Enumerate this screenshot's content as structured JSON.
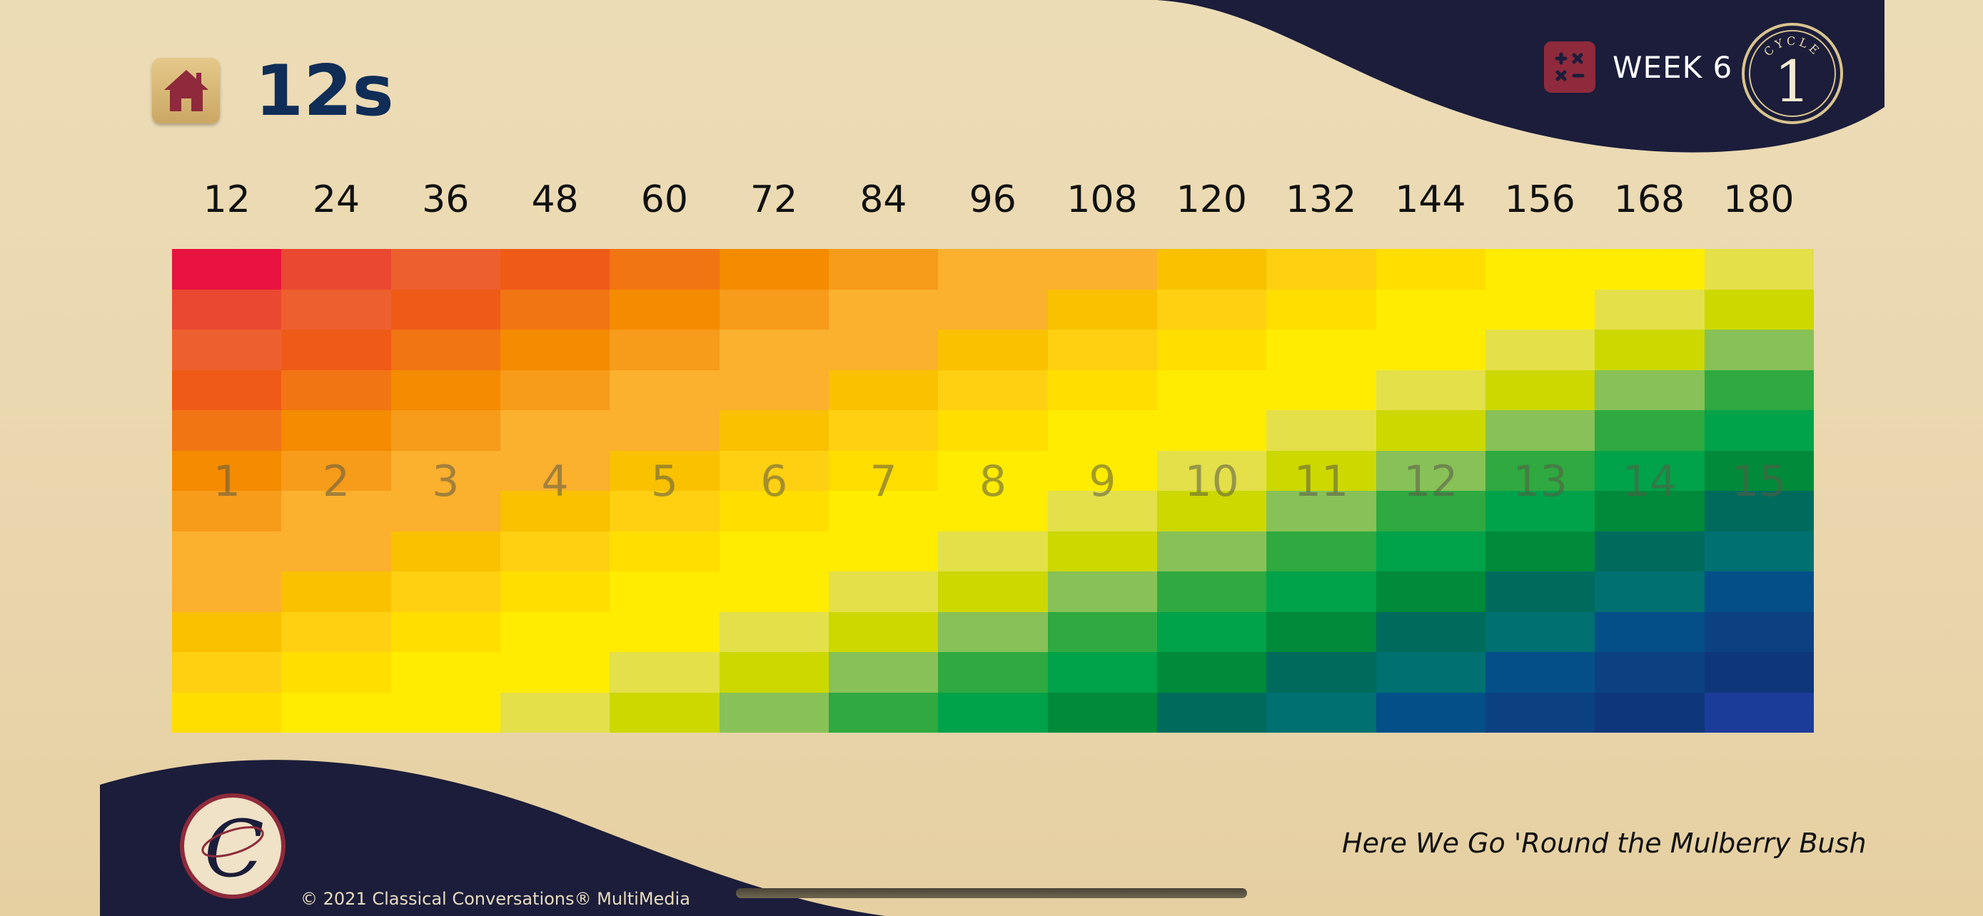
{
  "header": {
    "title": "12s",
    "week_label": "WEEK 6",
    "cycle_text": "CYCLE",
    "cycle_number": "1"
  },
  "multiples": [
    "12",
    "24",
    "36",
    "48",
    "60",
    "72",
    "84",
    "96",
    "108",
    "120",
    "132",
    "144",
    "156",
    "168",
    "180"
  ],
  "step_numbers": [
    "1",
    "2",
    "3",
    "4",
    "5",
    "6",
    "7",
    "8",
    "9",
    "10",
    "11",
    "12",
    "13",
    "14",
    "15"
  ],
  "song_title": "Here We Go 'Round the Mulberry Bush",
  "copyright": "© 2021 Classical Conversations® MultiMedia",
  "logo_letter": "C",
  "icons": {
    "home": "home-icon",
    "calculator": "calculator-icon"
  },
  "colors": {
    "title": "#0f2d57",
    "navy": "#1b1d3a",
    "accent": "#8e2a3b",
    "palette": [
      "#e8133f",
      "#ea4830",
      "#ee5f2f",
      "#ef5a17",
      "#f27514",
      "#f48b00",
      "#f79b1a",
      "#fbb02e",
      "#f9c100",
      "#ffd012",
      "#ffde00",
      "#ffec00",
      "#e3e04a",
      "#ccd800",
      "#88c157",
      "#2fa940",
      "#00a24a",
      "#008a3a",
      "#006b5c",
      "#007070",
      "#044f88",
      "#0b4180",
      "#0e377a",
      "#1c3c9a"
    ],
    "grid": [
      [
        0,
        1,
        2,
        3,
        4,
        5,
        6,
        7,
        7,
        8,
        9,
        10,
        11,
        11,
        12
      ],
      [
        1,
        2,
        3,
        4,
        5,
        6,
        7,
        7,
        8,
        9,
        10,
        11,
        11,
        12,
        13
      ],
      [
        2,
        3,
        4,
        5,
        6,
        7,
        7,
        8,
        9,
        10,
        11,
        11,
        12,
        13,
        14
      ],
      [
        3,
        4,
        5,
        6,
        7,
        7,
        8,
        9,
        10,
        11,
        11,
        12,
        13,
        14,
        15
      ],
      [
        4,
        5,
        6,
        7,
        7,
        8,
        9,
        10,
        11,
        11,
        12,
        13,
        14,
        15,
        16
      ],
      [
        5,
        6,
        7,
        7,
        8,
        9,
        10,
        11,
        11,
        12,
        13,
        14,
        15,
        16,
        17
      ],
      [
        6,
        7,
        7,
        8,
        9,
        10,
        11,
        11,
        12,
        13,
        14,
        15,
        16,
        17,
        18
      ],
      [
        7,
        7,
        8,
        9,
        10,
        11,
        11,
        12,
        13,
        14,
        15,
        16,
        17,
        18,
        19
      ],
      [
        7,
        8,
        9,
        10,
        11,
        11,
        12,
        13,
        14,
        15,
        16,
        17,
        18,
        19,
        20
      ],
      [
        8,
        9,
        10,
        11,
        11,
        12,
        13,
        14,
        15,
        16,
        17,
        18,
        19,
        20,
        21
      ],
      [
        9,
        10,
        11,
        11,
        12,
        13,
        14,
        15,
        16,
        17,
        18,
        19,
        20,
        21,
        22
      ],
      [
        10,
        11,
        11,
        12,
        13,
        14,
        15,
        16,
        17,
        18,
        19,
        20,
        21,
        22,
        23
      ]
    ]
  }
}
